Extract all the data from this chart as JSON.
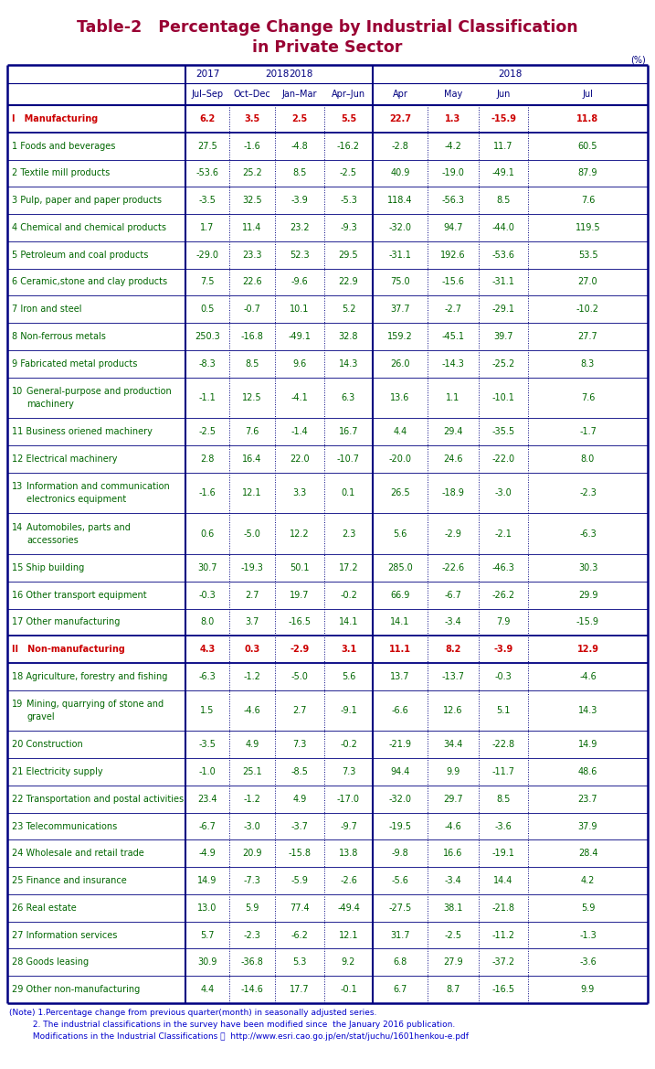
{
  "title_line1": "Table-2   Percentage Change by Industrial Classification",
  "title_line2": "in Private Sector",
  "title_color": "#990033",
  "unit_label": "(%)",
  "rows": [
    {
      "label": "I   Manufacturing",
      "num": "",
      "values": [
        6.2,
        3.5,
        2.5,
        5.5,
        22.7,
        1.3,
        -15.9,
        11.8
      ],
      "label_color": "#cc0000",
      "value_color": "#cc0000",
      "bold": true,
      "roman": true,
      "multiline": false
    },
    {
      "label": "1 Foods and beverages",
      "num": "",
      "values": [
        27.5,
        -1.6,
        -4.8,
        -16.2,
        -2.8,
        -4.2,
        11.7,
        60.5
      ],
      "label_color": "#006600",
      "value_color": "#006600",
      "bold": false,
      "roman": false,
      "multiline": false
    },
    {
      "label": "2 Textile mill products",
      "num": "",
      "values": [
        -53.6,
        25.2,
        8.5,
        -2.5,
        40.9,
        -19.0,
        -49.1,
        87.9
      ],
      "label_color": "#006600",
      "value_color": "#006600",
      "bold": false,
      "roman": false,
      "multiline": false
    },
    {
      "label": "3 Pulp, paper and paper products",
      "num": "",
      "values": [
        -3.5,
        32.5,
        -3.9,
        -5.3,
        118.4,
        -56.3,
        8.5,
        7.6
      ],
      "label_color": "#006600",
      "value_color": "#006600",
      "bold": false,
      "roman": false,
      "multiline": false
    },
    {
      "label": "4 Chemical and chemical products",
      "num": "",
      "values": [
        1.7,
        11.4,
        23.2,
        -9.3,
        -32.0,
        94.7,
        -44.0,
        119.5
      ],
      "label_color": "#006600",
      "value_color": "#006600",
      "bold": false,
      "roman": false,
      "multiline": false
    },
    {
      "label": "5 Petroleum and coal products",
      "num": "",
      "values": [
        -29.0,
        23.3,
        52.3,
        29.5,
        -31.1,
        192.6,
        -53.6,
        53.5
      ],
      "label_color": "#006600",
      "value_color": "#006600",
      "bold": false,
      "roman": false,
      "multiline": false
    },
    {
      "label": "6 Ceramic,stone and clay products",
      "num": "",
      "values": [
        7.5,
        22.6,
        -9.6,
        22.9,
        75.0,
        -15.6,
        -31.1,
        27.0
      ],
      "label_color": "#006600",
      "value_color": "#006600",
      "bold": false,
      "roman": false,
      "multiline": false
    },
    {
      "label": "7 Iron and steel",
      "num": "",
      "values": [
        0.5,
        -0.7,
        10.1,
        5.2,
        37.7,
        -2.7,
        -29.1,
        -10.2
      ],
      "label_color": "#006600",
      "value_color": "#006600",
      "bold": false,
      "roman": false,
      "multiline": false
    },
    {
      "label": "8 Non-ferrous metals",
      "num": "",
      "values": [
        250.3,
        -16.8,
        -49.1,
        32.8,
        159.2,
        -45.1,
        39.7,
        27.7
      ],
      "label_color": "#006600",
      "value_color": "#006600",
      "bold": false,
      "roman": false,
      "multiline": false
    },
    {
      "label": "9 Fabricated metal products",
      "num": "",
      "values": [
        -8.3,
        8.5,
        9.6,
        14.3,
        26.0,
        -14.3,
        -25.2,
        8.3
      ],
      "label_color": "#006600",
      "value_color": "#006600",
      "bold": false,
      "roman": false,
      "multiline": false
    },
    {
      "label_parts": [
        "10",
        "General-purpose and production",
        "machinery"
      ],
      "num": "10",
      "values": [
        -1.1,
        12.5,
        -4.1,
        6.3,
        13.6,
        1.1,
        -10.1,
        7.6
      ],
      "label_color": "#006600",
      "value_color": "#006600",
      "bold": false,
      "roman": false,
      "multiline": true
    },
    {
      "label": "11 Business oriened machinery",
      "num": "",
      "values": [
        -2.5,
        7.6,
        -1.4,
        16.7,
        4.4,
        29.4,
        -35.5,
        -1.7
      ],
      "label_color": "#006600",
      "value_color": "#006600",
      "bold": false,
      "roman": false,
      "multiline": false
    },
    {
      "label": "12 Electrical machinery",
      "num": "",
      "values": [
        2.8,
        16.4,
        22.0,
        -10.7,
        -20.0,
        24.6,
        -22.0,
        8.0
      ],
      "label_color": "#006600",
      "value_color": "#006600",
      "bold": false,
      "roman": false,
      "multiline": false
    },
    {
      "label_parts": [
        "13",
        "Information and communication",
        "electronics equipment"
      ],
      "num": "13",
      "values": [
        -1.6,
        12.1,
        3.3,
        0.1,
        26.5,
        -18.9,
        -3.0,
        -2.3
      ],
      "label_color": "#006600",
      "value_color": "#006600",
      "bold": false,
      "roman": false,
      "multiline": true
    },
    {
      "label_parts": [
        "14",
        "Automobiles, parts and",
        "accessories"
      ],
      "num": "14",
      "values": [
        0.6,
        -5.0,
        12.2,
        2.3,
        5.6,
        -2.9,
        -2.1,
        -6.3
      ],
      "label_color": "#006600",
      "value_color": "#006600",
      "bold": false,
      "roman": false,
      "multiline": true
    },
    {
      "label": "15 Ship building",
      "num": "",
      "values": [
        30.7,
        -19.3,
        50.1,
        17.2,
        285.0,
        -22.6,
        -46.3,
        30.3
      ],
      "label_color": "#006600",
      "value_color": "#006600",
      "bold": false,
      "roman": false,
      "multiline": false
    },
    {
      "label": "16 Other transport equipment",
      "num": "",
      "values": [
        -0.3,
        2.7,
        19.7,
        -0.2,
        66.9,
        -6.7,
        -26.2,
        29.9
      ],
      "label_color": "#006600",
      "value_color": "#006600",
      "bold": false,
      "roman": false,
      "multiline": false
    },
    {
      "label": "17 Other manufacturing",
      "num": "",
      "values": [
        8.0,
        3.7,
        -16.5,
        14.1,
        14.1,
        -3.4,
        7.9,
        -15.9
      ],
      "label_color": "#006600",
      "value_color": "#006600",
      "bold": false,
      "roman": false,
      "multiline": false
    },
    {
      "label": "II   Non-manufacturing",
      "num": "",
      "values": [
        4.3,
        0.3,
        -2.9,
        3.1,
        11.1,
        8.2,
        -3.9,
        12.9
      ],
      "label_color": "#cc0000",
      "value_color": "#cc0000",
      "bold": true,
      "roman": true,
      "multiline": false
    },
    {
      "label": "18 Agriculture, forestry and fishing",
      "num": "",
      "values": [
        -6.3,
        -1.2,
        -5.0,
        5.6,
        13.7,
        -13.7,
        -0.3,
        -4.6
      ],
      "label_color": "#006600",
      "value_color": "#006600",
      "bold": false,
      "roman": false,
      "multiline": false
    },
    {
      "label_parts": [
        "19",
        "Mining, quarrying of stone and",
        "gravel"
      ],
      "num": "19",
      "values": [
        1.5,
        -4.6,
        2.7,
        -9.1,
        -6.6,
        12.6,
        5.1,
        14.3
      ],
      "label_color": "#006600",
      "value_color": "#006600",
      "bold": false,
      "roman": false,
      "multiline": true
    },
    {
      "label": "20 Construction",
      "num": "",
      "values": [
        -3.5,
        4.9,
        7.3,
        -0.2,
        -21.9,
        34.4,
        -22.8,
        14.9
      ],
      "label_color": "#006600",
      "value_color": "#006600",
      "bold": false,
      "roman": false,
      "multiline": false
    },
    {
      "label": "21 Electricity supply",
      "num": "",
      "values": [
        -1.0,
        25.1,
        -8.5,
        7.3,
        94.4,
        9.9,
        -11.7,
        48.6
      ],
      "label_color": "#006600",
      "value_color": "#006600",
      "bold": false,
      "roman": false,
      "multiline": false
    },
    {
      "label": "22 Transportation and postal activities",
      "num": "",
      "values": [
        23.4,
        -1.2,
        4.9,
        -17.0,
        -32.0,
        29.7,
        8.5,
        23.7
      ],
      "label_color": "#006600",
      "value_color": "#006600",
      "bold": false,
      "roman": false,
      "multiline": false
    },
    {
      "label": "23 Telecommunications",
      "num": "",
      "values": [
        -6.7,
        -3.0,
        -3.7,
        -9.7,
        -19.5,
        -4.6,
        -3.6,
        37.9
      ],
      "label_color": "#006600",
      "value_color": "#006600",
      "bold": false,
      "roman": false,
      "multiline": false
    },
    {
      "label": "24 Wholesale and retail trade",
      "num": "",
      "values": [
        -4.9,
        20.9,
        -15.8,
        13.8,
        -9.8,
        16.6,
        -19.1,
        28.4
      ],
      "label_color": "#006600",
      "value_color": "#006600",
      "bold": false,
      "roman": false,
      "multiline": false
    },
    {
      "label": "25 Finance and insurance",
      "num": "",
      "values": [
        14.9,
        -7.3,
        -5.9,
        -2.6,
        -5.6,
        -3.4,
        14.4,
        4.2
      ],
      "label_color": "#006600",
      "value_color": "#006600",
      "bold": false,
      "roman": false,
      "multiline": false
    },
    {
      "label": "26 Real estate",
      "num": "",
      "values": [
        13.0,
        5.9,
        77.4,
        -49.4,
        -27.5,
        38.1,
        -21.8,
        5.9
      ],
      "label_color": "#006600",
      "value_color": "#006600",
      "bold": false,
      "roman": false,
      "multiline": false
    },
    {
      "label": "27 Information services",
      "num": "",
      "values": [
        5.7,
        -2.3,
        -6.2,
        12.1,
        31.7,
        -2.5,
        -11.2,
        -1.3
      ],
      "label_color": "#006600",
      "value_color": "#006600",
      "bold": false,
      "roman": false,
      "multiline": false
    },
    {
      "label": "28 Goods leasing",
      "num": "",
      "values": [
        30.9,
        -36.8,
        5.3,
        9.2,
        6.8,
        27.9,
        -37.2,
        -3.6
      ],
      "label_color": "#006600",
      "value_color": "#006600",
      "bold": false,
      "roman": false,
      "multiline": false
    },
    {
      "label": "29 Other non-manufacturing",
      "num": "",
      "values": [
        4.4,
        -14.6,
        17.7,
        -0.1,
        6.7,
        8.7,
        -16.5,
        9.9
      ],
      "label_color": "#006600",
      "value_color": "#006600",
      "bold": false,
      "roman": false,
      "multiline": false
    }
  ],
  "note_lines": [
    "(Note) 1.Percentage change from previous quarter(month) in seasonally adjusted series.",
    "         2. The industrial classifications in the survey have been modified since  the January 2016 publication.",
    "         Modifications in the Industrial Classifications ；  http://www.esri.cao.go.jp/en/stat/juchu/1601henkou-e.pdf"
  ],
  "header_color": "#000080",
  "border_color": "#000080",
  "bg_color": "#ffffff"
}
